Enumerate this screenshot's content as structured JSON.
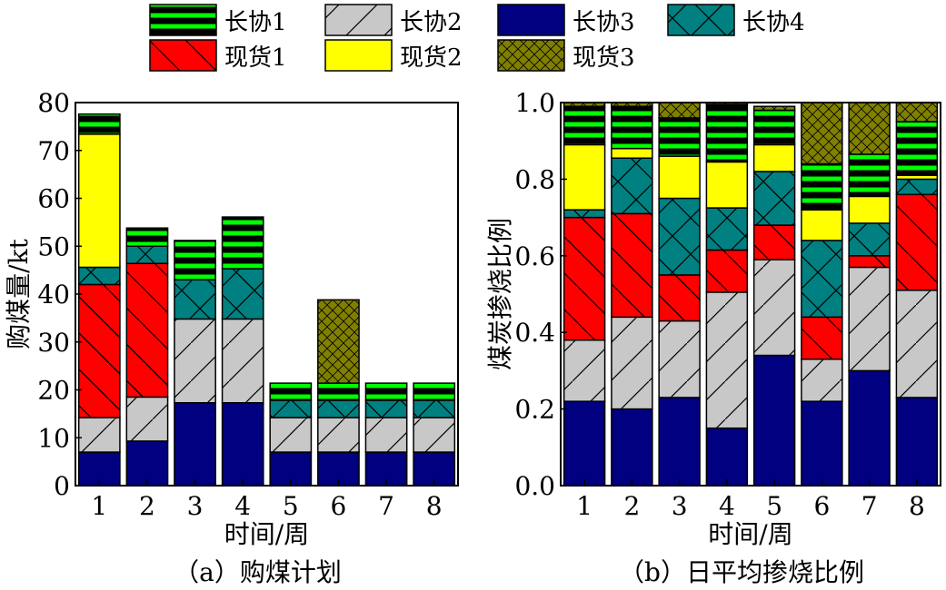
{
  "legend": [
    {
      "key": "lx1",
      "label": "长协1",
      "color": "#000000"
    },
    {
      "key": "lx2",
      "label": "长协2",
      "color": "#c8c8c8"
    },
    {
      "key": "lx3",
      "label": "长协3",
      "color": "#000080"
    },
    {
      "key": "lx4",
      "label": "长协4",
      "color": "#008080"
    },
    {
      "key": "xh1",
      "label": "现货1",
      "color": "#ff0000"
    },
    {
      "key": "xh2",
      "label": "现货2",
      "color": "#ffff00"
    },
    {
      "key": "xh3",
      "label": "现货3",
      "color": "#808000"
    }
  ],
  "chart_data": [
    {
      "type": "bar",
      "stacked": true,
      "caption": "（a）购煤计划",
      "xlabel": "时间/周",
      "ylabel": "购煤量/kt",
      "ylim": [
        0,
        80
      ],
      "yticks": [
        0,
        10,
        20,
        30,
        40,
        50,
        60,
        70,
        80
      ],
      "categories": [
        "1",
        "2",
        "3",
        "4",
        "5",
        "6",
        "7",
        "8"
      ],
      "series": [
        {
          "key": "lx3",
          "name": "长协3",
          "values": [
            7,
            9.3,
            17.3,
            17.3,
            7,
            7,
            7,
            7
          ]
        },
        {
          "key": "lx2",
          "name": "长协2",
          "values": [
            7.2,
            9.2,
            17.5,
            17.5,
            7.2,
            7.2,
            7.2,
            7.2
          ]
        },
        {
          "key": "xh1",
          "name": "现货1",
          "values": [
            27.8,
            27.9,
            0,
            0,
            0,
            0,
            0,
            0
          ]
        },
        {
          "key": "lx4",
          "name": "长协4",
          "values": [
            3.6,
            3.6,
            8.2,
            10.5,
            3.6,
            3.6,
            3.6,
            3.6
          ]
        },
        {
          "key": "xh2",
          "name": "现货2",
          "values": [
            27.8,
            0,
            0,
            0,
            0,
            0,
            0,
            0
          ]
        },
        {
          "key": "lx1",
          "name": "长协1",
          "values": [
            4.2,
            3.8,
            8.2,
            10.8,
            3.6,
            3.6,
            3.6,
            3.6
          ]
        },
        {
          "key": "xh3",
          "name": "现货3",
          "values": [
            0,
            0,
            0,
            0,
            0,
            17.4,
            0,
            0
          ]
        }
      ]
    },
    {
      "type": "bar",
      "stacked": true,
      "caption": "（b）日平均掺烧比例",
      "xlabel": "时间/周",
      "ylabel": "煤炭掺烧比例",
      "ylim": [
        0,
        1.0
      ],
      "yticks": [
        0,
        0.2,
        0.4,
        0.6,
        0.8,
        1.0
      ],
      "categories": [
        "1",
        "2",
        "3",
        "4",
        "5",
        "6",
        "7",
        "8"
      ],
      "series": [
        {
          "key": "lx3",
          "name": "长协3",
          "values": [
            0.22,
            0.2,
            0.23,
            0.15,
            0.34,
            0.22,
            0.3,
            0.23
          ]
        },
        {
          "key": "lx2",
          "name": "长协2",
          "values": [
            0.16,
            0.24,
            0.2,
            0.355,
            0.25,
            0.11,
            0.27,
            0.28
          ]
        },
        {
          "key": "xh1",
          "name": "现货1",
          "values": [
            0.32,
            0.27,
            0.12,
            0.11,
            0.09,
            0.11,
            0.03,
            0.25
          ]
        },
        {
          "key": "lx4",
          "name": "长协4",
          "values": [
            0.02,
            0.145,
            0.2,
            0.11,
            0.14,
            0.2,
            0.085,
            0.04
          ]
        },
        {
          "key": "xh2",
          "name": "现货2",
          "values": [
            0.17,
            0.025,
            0.11,
            0.12,
            0.07,
            0.08,
            0.07,
            0.01
          ]
        },
        {
          "key": "lx1",
          "name": "长协1",
          "values": [
            0.1,
            0.11,
            0.1,
            0.15,
            0.09,
            0.12,
            0.11,
            0.14
          ]
        },
        {
          "key": "xh3",
          "name": "现货3",
          "values": [
            0.01,
            0.01,
            0.04,
            0.005,
            0.01,
            0.16,
            0.135,
            0.05
          ]
        }
      ]
    }
  ]
}
